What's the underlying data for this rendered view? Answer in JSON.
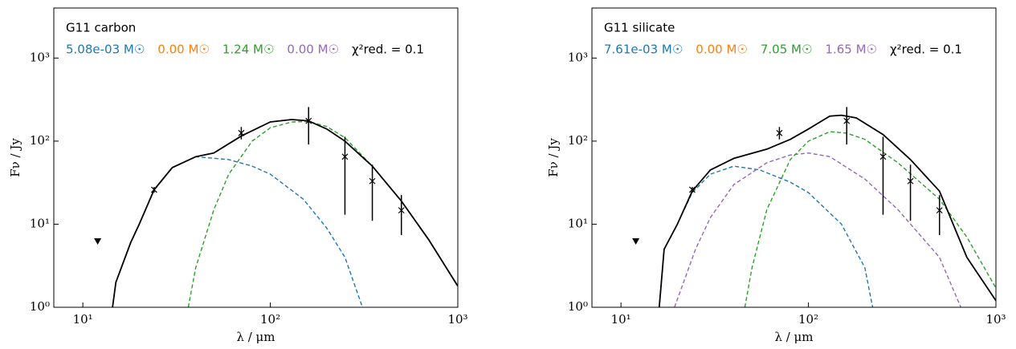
{
  "chart_data": [
    {
      "type": "line",
      "title": "G11 carbon",
      "annotations": [
        {
          "text": "5.08e-03 M☉",
          "color": "#1f77b4"
        },
        {
          "text": "0.00 M☉",
          "color": "#ff7f0e"
        },
        {
          "text": "1.24 M☉",
          "color": "#2ca02c"
        },
        {
          "text": "0.00 M☉",
          "color": "#9467bd"
        },
        {
          "text": "χ²red. = 0.1",
          "color": "#000000"
        }
      ],
      "xlabel": "λ / μm",
      "ylabel": "Fν / Jy",
      "xscale": "log",
      "yscale": "log",
      "xlim": [
        7,
        1000
      ],
      "ylim": [
        1,
        4000
      ],
      "xticks": [
        {
          "value": 10,
          "label": "10¹"
        },
        {
          "value": 100,
          "label": "10²"
        },
        {
          "value": 1000,
          "label": "10³"
        }
      ],
      "yticks": [
        {
          "value": 1,
          "label": "10⁰"
        },
        {
          "value": 10,
          "label": "10¹"
        },
        {
          "value": 100,
          "label": "10²"
        },
        {
          "value": 1000,
          "label": "10³"
        }
      ],
      "series": [
        {
          "color": "#1f77b4",
          "dashed": true,
          "x": [
            15,
            18,
            20,
            24,
            30,
            40,
            60,
            80,
            100,
            150,
            200,
            250,
            310
          ],
          "values": [
            2,
            6,
            10,
            26,
            48,
            65,
            60,
            50,
            40,
            20,
            9,
            4,
            1
          ]
        },
        {
          "color": "#2ca02c",
          "dashed": true,
          "x": [
            36.5,
            40,
            50,
            60,
            80,
            100,
            130,
            160,
            200,
            250,
            350,
            500,
            700,
            1000
          ],
          "values": [
            1,
            3,
            15,
            40,
            100,
            145,
            170,
            172,
            150,
            110,
            50,
            19,
            6.5,
            1.8
          ]
        },
        {
          "color": "#000000",
          "dashed": false,
          "x": [
            14.4,
            15,
            18,
            20,
            24,
            30,
            40,
            50,
            70,
            100,
            130,
            160,
            200,
            250,
            350,
            500,
            700,
            1000
          ],
          "values": [
            1,
            2,
            6,
            10,
            26,
            48,
            65,
            72,
            115,
            170,
            182,
            175,
            140,
            100,
            50,
            19,
            6.5,
            1.8
          ]
        }
      ],
      "points": {
        "x": [
          24,
          70,
          160,
          250,
          350,
          500
        ],
        "values": [
          26,
          125,
          175,
          65,
          33,
          14.7
        ],
        "yerr_minus": [
          2,
          20,
          84,
          52,
          22,
          7.3
        ],
        "yerr_plus": [
          2,
          23,
          82,
          48,
          19,
          7.7
        ]
      },
      "upper_limits": {
        "x": [
          12
        ],
        "values": [
          6.2
        ]
      }
    },
    {
      "type": "line",
      "title": "G11 silicate",
      "annotations": [
        {
          "text": "7.61e-03 M☉",
          "color": "#1f77b4"
        },
        {
          "text": "0.00 M☉",
          "color": "#ff7f0e"
        },
        {
          "text": "7.05 M☉",
          "color": "#2ca02c"
        },
        {
          "text": "1.65 M☉",
          "color": "#9467bd"
        },
        {
          "text": "χ²red. = 0.1",
          "color": "#000000"
        }
      ],
      "xlabel": "λ / μm",
      "ylabel": "Fν / Jy",
      "xscale": "log",
      "yscale": "log",
      "xlim": [
        7,
        1000
      ],
      "ylim": [
        1,
        4000
      ],
      "xticks": [
        {
          "value": 10,
          "label": "10¹"
        },
        {
          "value": 100,
          "label": "10²"
        },
        {
          "value": 1000,
          "label": "10³"
        }
      ],
      "yticks": [
        {
          "value": 1,
          "label": "10⁰"
        },
        {
          "value": 10,
          "label": "10¹"
        },
        {
          "value": 100,
          "label": "10²"
        },
        {
          "value": 1000,
          "label": "10³"
        }
      ],
      "series": [
        {
          "color": "#1f77b4",
          "dashed": true,
          "x": [
            16,
            17,
            20,
            24,
            30,
            40,
            55,
            80,
            100,
            150,
            200,
            220
          ],
          "values": [
            1,
            5,
            10,
            24,
            40,
            50,
            45,
            32,
            24,
            10,
            3,
            1
          ]
        },
        {
          "color": "#9467bd",
          "dashed": true,
          "x": [
            19.3,
            25,
            30,
            40,
            60,
            80,
            100,
            130,
            200,
            300,
            500,
            650
          ],
          "values": [
            1,
            5,
            12,
            30,
            55,
            68,
            72,
            65,
            35,
            15,
            4,
            1
          ]
        },
        {
          "color": "#2ca02c",
          "dashed": true,
          "x": [
            45.8,
            50,
            60,
            80,
            100,
            130,
            160,
            200,
            300,
            500,
            700,
            1000
          ],
          "values": [
            1,
            3,
            15,
            60,
            100,
            130,
            125,
            105,
            55,
            20,
            7,
            1.7
          ]
        },
        {
          "color": "#000000",
          "dashed": false,
          "x": [
            16,
            17,
            20,
            24,
            30,
            40,
            60,
            80,
            100,
            130,
            150,
            180,
            250,
            350,
            500,
            700,
            1000
          ],
          "values": [
            1,
            5,
            10,
            25,
            45,
            62,
            80,
            105,
            140,
            200,
            205,
            190,
            120,
            60,
            25,
            4,
            1.2
          ]
        }
      ],
      "points": {
        "x": [
          24,
          70,
          160,
          250,
          350,
          500
        ],
        "values": [
          26,
          125,
          175,
          65,
          33,
          14.7
        ],
        "yerr_minus": [
          2,
          20,
          84,
          52,
          22,
          7.3
        ],
        "yerr_plus": [
          2,
          23,
          82,
          48,
          19,
          7.7
        ]
      },
      "upper_limits": {
        "x": [
          12
        ],
        "values": [
          6.2
        ]
      }
    }
  ]
}
